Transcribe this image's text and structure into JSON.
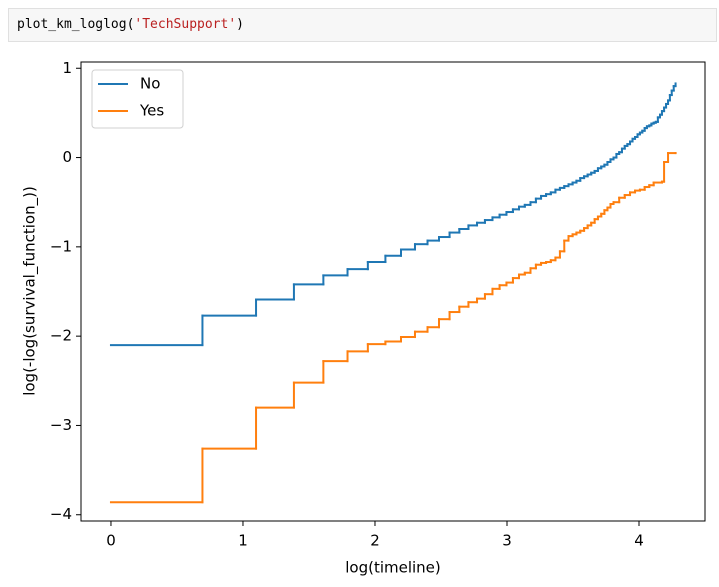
{
  "code_cell": {
    "tokens": [
      "plot_km_loglog(",
      "'TechSupport'",
      ")"
    ]
  },
  "chart_data": {
    "type": "step",
    "xlabel": "log(timeline)",
    "ylabel": "log(-log(survival_function_))",
    "xlim": [
      -0.227,
      4.5
    ],
    "ylim": [
      -4.07,
      1.07
    ],
    "xticks": [
      0,
      1,
      2,
      3,
      4
    ],
    "yticks": [
      {
        "value": -4,
        "label": "−4"
      },
      {
        "value": -3,
        "label": "−3"
      },
      {
        "value": -2,
        "label": "−2"
      },
      {
        "value": -1,
        "label": "−1"
      },
      0,
      1
    ],
    "grid": false,
    "legend": "upper left",
    "series": [
      {
        "name": "No",
        "color": "#1f77b4",
        "x": [
          0,
          0.693,
          1.099,
          1.386,
          1.609,
          1.792,
          1.946,
          2.079,
          2.197,
          2.303,
          2.398,
          2.485,
          2.565,
          2.639,
          2.708,
          2.773,
          2.833,
          2.89,
          2.944,
          2.996,
          3.045,
          3.091,
          3.135,
          3.178,
          3.219,
          3.258,
          3.296,
          3.332,
          3.367,
          3.401,
          3.434,
          3.466,
          3.497,
          3.526,
          3.555,
          3.584,
          3.611,
          3.638,
          3.664,
          3.689,
          3.714,
          3.738,
          3.761,
          3.784,
          3.807,
          3.829,
          3.85,
          3.871,
          3.892,
          3.912,
          3.932,
          3.951,
          3.97,
          3.989,
          4.007,
          4.025,
          4.043,
          4.06,
          4.078,
          4.094,
          4.111,
          4.127,
          4.143,
          4.159,
          4.174,
          4.19,
          4.205,
          4.22,
          4.234,
          4.248,
          4.263,
          4.277
        ],
        "values": [
          -2.1,
          -1.77,
          -1.59,
          -1.42,
          -1.32,
          -1.25,
          -1.17,
          -1.1,
          -1.03,
          -0.97,
          -0.93,
          -0.89,
          -0.84,
          -0.8,
          -0.76,
          -0.73,
          -0.7,
          -0.67,
          -0.64,
          -0.61,
          -0.58,
          -0.55,
          -0.53,
          -0.5,
          -0.46,
          -0.43,
          -0.41,
          -0.39,
          -0.36,
          -0.34,
          -0.32,
          -0.3,
          -0.28,
          -0.26,
          -0.23,
          -0.21,
          -0.19,
          -0.17,
          -0.15,
          -0.12,
          -0.1,
          -0.08,
          -0.05,
          -0.02,
          0.0,
          0.04,
          0.06,
          0.1,
          0.13,
          0.15,
          0.18,
          0.21,
          0.23,
          0.26,
          0.28,
          0.3,
          0.33,
          0.35,
          0.36,
          0.38,
          0.39,
          0.4,
          0.45,
          0.48,
          0.52,
          0.56,
          0.6,
          0.64,
          0.7,
          0.75,
          0.8,
          0.83
        ]
      },
      {
        "name": "Yes",
        "color": "#ff7f0e",
        "x": [
          0,
          0.693,
          1.099,
          1.386,
          1.609,
          1.792,
          1.946,
          2.079,
          2.197,
          2.303,
          2.398,
          2.485,
          2.565,
          2.639,
          2.708,
          2.773,
          2.833,
          2.89,
          2.944,
          2.996,
          3.045,
          3.091,
          3.135,
          3.178,
          3.219,
          3.258,
          3.296,
          3.332,
          3.367,
          3.401,
          3.434,
          3.466,
          3.497,
          3.526,
          3.555,
          3.584,
          3.611,
          3.638,
          3.664,
          3.689,
          3.714,
          3.738,
          3.761,
          3.784,
          3.807,
          3.85,
          3.892,
          3.932,
          3.97,
          4.007,
          4.043,
          4.078,
          4.111,
          4.174,
          4.19,
          4.22,
          4.277
        ],
        "values": [
          -3.86,
          -3.26,
          -2.8,
          -2.52,
          -2.28,
          -2.17,
          -2.09,
          -2.06,
          -2.01,
          -1.95,
          -1.9,
          -1.81,
          -1.73,
          -1.67,
          -1.62,
          -1.58,
          -1.53,
          -1.47,
          -1.43,
          -1.4,
          -1.35,
          -1.31,
          -1.29,
          -1.24,
          -1.2,
          -1.18,
          -1.17,
          -1.15,
          -1.12,
          -1.05,
          -0.93,
          -0.88,
          -0.86,
          -0.84,
          -0.82,
          -0.79,
          -0.76,
          -0.73,
          -0.69,
          -0.66,
          -0.63,
          -0.59,
          -0.56,
          -0.52,
          -0.5,
          -0.45,
          -0.42,
          -0.39,
          -0.37,
          -0.36,
          -0.33,
          -0.31,
          -0.28,
          -0.27,
          -0.05,
          0.05,
          0.05
        ]
      }
    ]
  }
}
